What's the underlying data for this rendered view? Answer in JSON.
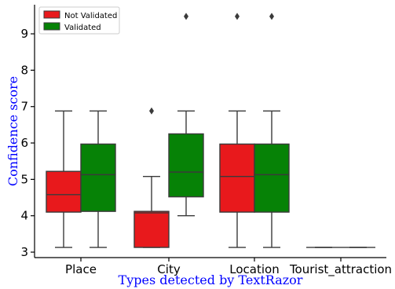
{
  "chart_data": {
    "type": "box",
    "xlabel": "Types detected by TextRazor",
    "ylabel": "Confidence score",
    "ylim": [
      2.85,
      9.8
    ],
    "yticks": [
      3,
      4,
      5,
      6,
      7,
      8,
      9
    ],
    "categories": [
      "Place",
      "City",
      "Location",
      "Tourist_attraction"
    ],
    "legend_position": "top-left",
    "grid": false,
    "series": [
      {
        "name": "Not Validated",
        "color": "#e8191c",
        "boxes": [
          {
            "category": "Place",
            "whislo": 3.13,
            "q1": 4.1,
            "med": 4.58,
            "q3": 5.22,
            "whishi": 6.88,
            "fliers": []
          },
          {
            "category": "City",
            "whislo": 3.13,
            "q1": 3.13,
            "med": 4.08,
            "q3": 4.12,
            "whishi": 5.08,
            "fliers": [
              6.88
            ]
          },
          {
            "category": "Location",
            "whislo": 3.13,
            "q1": 4.1,
            "med": 5.08,
            "q3": 5.97,
            "whishi": 6.88,
            "fliers": [
              9.48
            ]
          },
          {
            "category": "Tourist_attraction",
            "whislo": 3.13,
            "q1": 3.13,
            "med": 3.13,
            "q3": 3.13,
            "whishi": 3.13,
            "fliers": []
          }
        ]
      },
      {
        "name": "Validated",
        "color": "#068206",
        "boxes": [
          {
            "category": "Place",
            "whislo": 3.13,
            "q1": 4.12,
            "med": 5.13,
            "q3": 5.97,
            "whishi": 6.88,
            "fliers": []
          },
          {
            "category": "City",
            "whislo": 4.0,
            "q1": 4.52,
            "med": 5.2,
            "q3": 6.25,
            "whishi": 6.88,
            "fliers": [
              9.48
            ]
          },
          {
            "category": "Location",
            "whislo": 3.13,
            "q1": 4.1,
            "med": 5.13,
            "q3": 5.97,
            "whishi": 6.88,
            "fliers": [
              9.48
            ]
          },
          {
            "category": "Tourist_attraction",
            "whislo": 3.13,
            "q1": 3.13,
            "med": 3.13,
            "q3": 3.13,
            "whishi": 3.13,
            "fliers": []
          }
        ]
      }
    ]
  }
}
